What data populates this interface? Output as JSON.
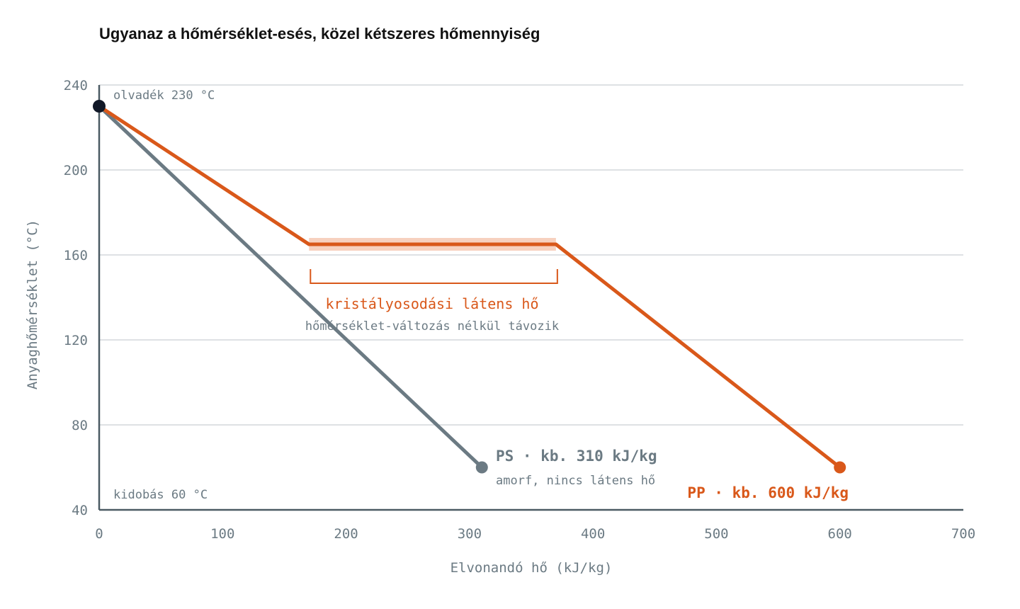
{
  "chart_data": {
    "type": "line",
    "title": "Ugyanaz a hőmérséklet-esés, közel kétszeres hőmennyiség",
    "xlabel": "Elvonandó hő (kJ/kg)",
    "ylabel": "Anyaghőmérséklet (°C)",
    "xlim": [
      0,
      700
    ],
    "ylim": [
      40,
      240
    ],
    "xticks": [
      0,
      100,
      200,
      300,
      400,
      500,
      600,
      700
    ],
    "yticks": [
      40,
      80,
      120,
      160,
      200,
      240
    ],
    "grid": true,
    "series": [
      {
        "name": "PS",
        "color": "#6b7a83",
        "points": [
          [
            0,
            230
          ],
          [
            310,
            60
          ]
        ]
      },
      {
        "name": "PP",
        "color": "#d9581a",
        "points": [
          [
            0,
            230
          ],
          [
            170,
            165
          ],
          [
            370,
            165
          ],
          [
            600,
            60
          ]
        ]
      }
    ],
    "start_point": {
      "x": 0,
      "y": 230,
      "color": "#111827"
    },
    "latent_band": {
      "x_start": 170,
      "x_end": 370,
      "y": 165,
      "color": "#f6c9b4"
    },
    "annotations": {
      "melt": "olvadék 230 °C",
      "eject": "kidobás 60 °C",
      "latent_title": "kristályosodási látens hő",
      "latent_sub": "hőmérséklet-változás nélkül távozik",
      "ps_label": "PS · kb. 310 kJ/kg",
      "ps_sub": "amorf, nincs látens hő",
      "pp_label": "PP · kb. 600 kJ/kg"
    }
  }
}
